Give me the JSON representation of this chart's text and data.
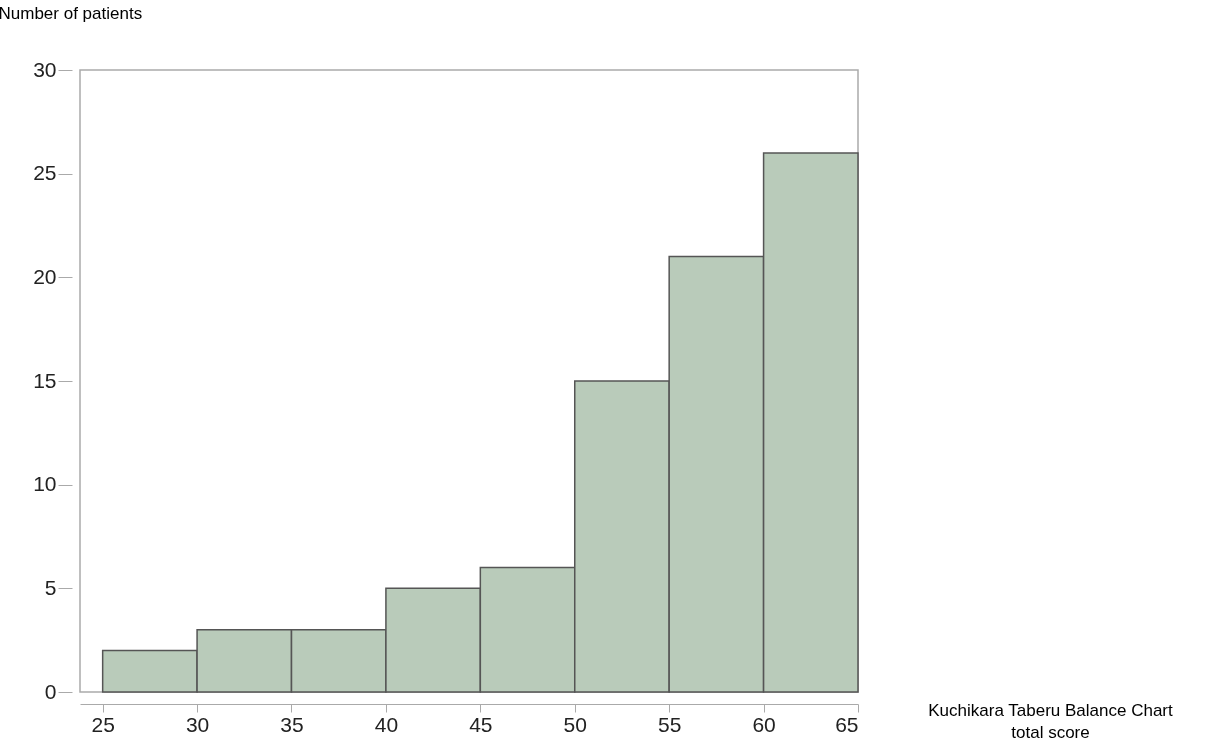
{
  "chart_data": {
    "type": "histogram",
    "bins": [
      25,
      30,
      35,
      40,
      45,
      50,
      55,
      60,
      65
    ],
    "values": [
      2,
      3,
      3,
      5,
      6,
      15,
      21,
      26
    ],
    "color": "#b9cbba",
    "xlabel": "Kuchikara Taberu Balance Chart\ntotal score",
    "ylabel": "Number of patients",
    "xlim": [
      23.8,
      65
    ],
    "ylim": [
      0,
      30
    ],
    "xticks": [
      25,
      30,
      35,
      40,
      45,
      50,
      55,
      60,
      65
    ],
    "yticks": [
      0,
      5,
      10,
      15,
      20,
      25,
      30
    ],
    "grid": false
  }
}
